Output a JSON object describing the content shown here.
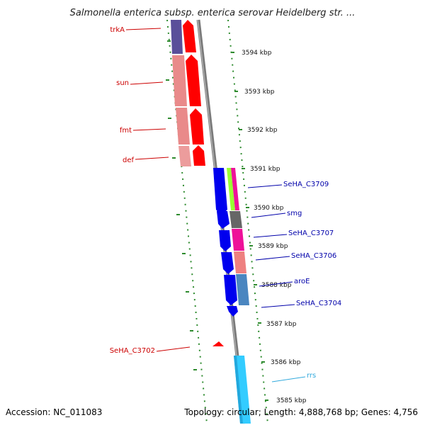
{
  "title": "Salmonella enterica subsp. enterica serovar Heidelberg str. ...",
  "footer": {
    "accession": "Accession: NC_011083",
    "topology": "Topology: circular; Length: 4,888,768 bp; Genes: 4,756"
  },
  "ticks": [
    {
      "label": "3594 kbp"
    },
    {
      "label": "3593 kbp"
    },
    {
      "label": "3592 kbp"
    },
    {
      "label": "3591 kbp"
    },
    {
      "label": "3590 kbp"
    },
    {
      "label": "3589 kbp"
    },
    {
      "label": "3588 kbp"
    },
    {
      "label": "3587 kbp"
    },
    {
      "label": "3586 kbp"
    },
    {
      "label": "3585 kbp"
    }
  ],
  "genes_left": [
    {
      "name": "trkA",
      "color": "#cc0000"
    },
    {
      "name": "sun",
      "color": "#cc0000"
    },
    {
      "name": "fmt",
      "color": "#cc0000"
    },
    {
      "name": "def",
      "color": "#cc0000"
    },
    {
      "name": "SeHA_C3702",
      "color": "#cc0000"
    }
  ],
  "genes_right": [
    {
      "name": "SeHA_C3709",
      "color": "#0000aa"
    },
    {
      "name": "smg",
      "color": "#0000aa"
    },
    {
      "name": "SeHA_C3707",
      "color": "#0000aa"
    },
    {
      "name": "SeHA_C3706",
      "color": "#0000aa"
    },
    {
      "name": "aroE",
      "color": "#0000aa"
    },
    {
      "name": "SeHA_C3704",
      "color": "#0000aa"
    },
    {
      "name": "rrs",
      "color": "#33aadd"
    }
  ]
}
